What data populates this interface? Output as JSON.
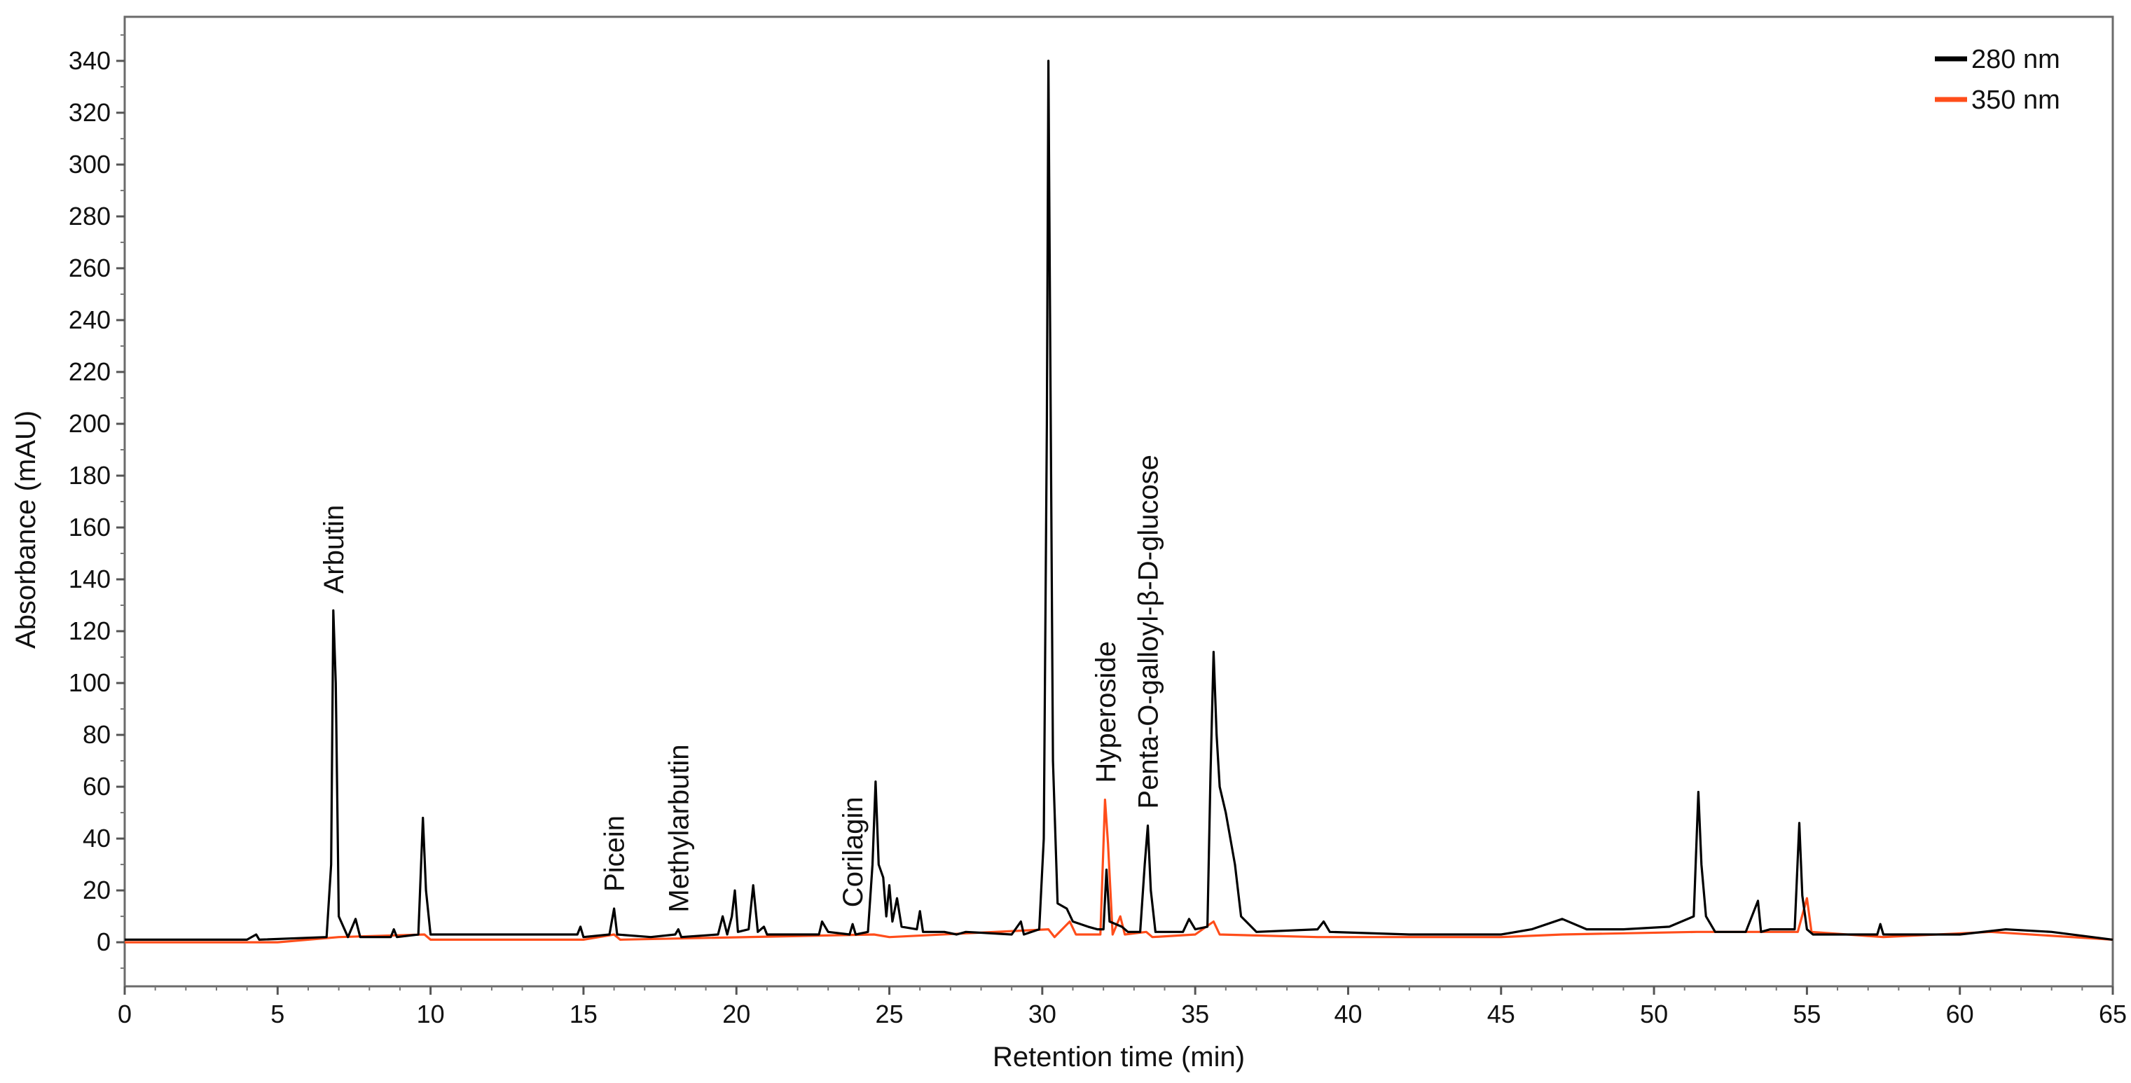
{
  "chart_data": {
    "type": "line",
    "title": "",
    "xlabel": "Retention time (min)",
    "ylabel": "Absorbance (mAU)",
    "xlim": [
      0,
      65
    ],
    "ylim": [
      -17,
      357
    ],
    "x_ticks": [
      0,
      5,
      10,
      15,
      20,
      25,
      30,
      35,
      40,
      45,
      50,
      55,
      60,
      65
    ],
    "y_ticks": [
      0,
      20,
      40,
      60,
      80,
      100,
      120,
      140,
      160,
      180,
      200,
      220,
      240,
      260,
      280,
      300,
      320,
      340
    ],
    "grid": false,
    "legend_position": "top-right",
    "series": [
      {
        "name": "280 nm",
        "color": "#000000",
        "points": [
          [
            0,
            1
          ],
          [
            4,
            1
          ],
          [
            4.3,
            3
          ],
          [
            4.4,
            1
          ],
          [
            6.6,
            2
          ],
          [
            6.75,
            30
          ],
          [
            6.82,
            128
          ],
          [
            6.9,
            100
          ],
          [
            7.0,
            10
          ],
          [
            7.3,
            2
          ],
          [
            7.55,
            9
          ],
          [
            7.7,
            2
          ],
          [
            8.7,
            2
          ],
          [
            8.8,
            5
          ],
          [
            8.9,
            2
          ],
          [
            9.6,
            3
          ],
          [
            9.75,
            48
          ],
          [
            9.85,
            20
          ],
          [
            10.0,
            3
          ],
          [
            14.8,
            3
          ],
          [
            14.9,
            6
          ],
          [
            15.0,
            2
          ],
          [
            15.85,
            3
          ],
          [
            16.0,
            13
          ],
          [
            16.1,
            3
          ],
          [
            17.2,
            2
          ],
          [
            18.0,
            3
          ],
          [
            18.1,
            5
          ],
          [
            18.2,
            2
          ],
          [
            19.4,
            3
          ],
          [
            19.55,
            10
          ],
          [
            19.7,
            3
          ],
          [
            19.85,
            10
          ],
          [
            19.95,
            20
          ],
          [
            20.05,
            4
          ],
          [
            20.4,
            5
          ],
          [
            20.55,
            22
          ],
          [
            20.7,
            4
          ],
          [
            20.9,
            6
          ],
          [
            21.0,
            3
          ],
          [
            22.7,
            3
          ],
          [
            22.8,
            8
          ],
          [
            23.0,
            4
          ],
          [
            23.7,
            3
          ],
          [
            23.8,
            7
          ],
          [
            23.9,
            3
          ],
          [
            24.3,
            4
          ],
          [
            24.45,
            30
          ],
          [
            24.55,
            62
          ],
          [
            24.65,
            30
          ],
          [
            24.8,
            25
          ],
          [
            24.9,
            10
          ],
          [
            25.0,
            22
          ],
          [
            25.1,
            8
          ],
          [
            25.25,
            17
          ],
          [
            25.4,
            6
          ],
          [
            25.9,
            5
          ],
          [
            26.0,
            12
          ],
          [
            26.1,
            4
          ],
          [
            26.8,
            4
          ],
          [
            27.2,
            3
          ],
          [
            27.5,
            4
          ],
          [
            29.0,
            3
          ],
          [
            29.3,
            8
          ],
          [
            29.4,
            3
          ],
          [
            29.9,
            5
          ],
          [
            30.05,
            40
          ],
          [
            30.15,
            200
          ],
          [
            30.2,
            340
          ],
          [
            30.25,
            248
          ],
          [
            30.35,
            70
          ],
          [
            30.5,
            15
          ],
          [
            30.8,
            13
          ],
          [
            31.0,
            8
          ],
          [
            31.5,
            6
          ],
          [
            31.8,
            5
          ],
          [
            32.0,
            5
          ],
          [
            32.1,
            28
          ],
          [
            32.2,
            8
          ],
          [
            32.6,
            6
          ],
          [
            32.8,
            4
          ],
          [
            33.2,
            4
          ],
          [
            33.35,
            30
          ],
          [
            33.45,
            45
          ],
          [
            33.55,
            20
          ],
          [
            33.7,
            4
          ],
          [
            34.6,
            4
          ],
          [
            34.8,
            9
          ],
          [
            35.0,
            5
          ],
          [
            35.4,
            6
          ],
          [
            35.5,
            65
          ],
          [
            35.6,
            112
          ],
          [
            35.7,
            80
          ],
          [
            35.8,
            60
          ],
          [
            36.0,
            50
          ],
          [
            36.3,
            30
          ],
          [
            36.5,
            10
          ],
          [
            37.0,
            4
          ],
          [
            39.0,
            5
          ],
          [
            39.2,
            8
          ],
          [
            39.4,
            4
          ],
          [
            42.0,
            3
          ],
          [
            45.0,
            3
          ],
          [
            46.0,
            5
          ],
          [
            47.0,
            9
          ],
          [
            47.8,
            5
          ],
          [
            49.0,
            5
          ],
          [
            50.5,
            6
          ],
          [
            51.3,
            10
          ],
          [
            51.45,
            58
          ],
          [
            51.55,
            30
          ],
          [
            51.7,
            10
          ],
          [
            52.0,
            4
          ],
          [
            53.0,
            4
          ],
          [
            53.4,
            16
          ],
          [
            53.5,
            4
          ],
          [
            53.8,
            5
          ],
          [
            54.6,
            5
          ],
          [
            54.75,
            46
          ],
          [
            54.85,
            18
          ],
          [
            55.0,
            5
          ],
          [
            55.2,
            3
          ],
          [
            57.3,
            3
          ],
          [
            57.4,
            7
          ],
          [
            57.5,
            3
          ],
          [
            60.0,
            3
          ],
          [
            61.5,
            5
          ],
          [
            63.0,
            4
          ],
          [
            65.0,
            1
          ]
        ]
      },
      {
        "name": "350 nm",
        "color": "#ff4d1a",
        "points": [
          [
            0,
            0
          ],
          [
            5,
            0
          ],
          [
            7.0,
            2
          ],
          [
            9.8,
            3
          ],
          [
            10.0,
            1
          ],
          [
            15.0,
            1
          ],
          [
            16.0,
            3
          ],
          [
            16.2,
            1
          ],
          [
            24.5,
            3
          ],
          [
            25.0,
            2
          ],
          [
            30.2,
            5
          ],
          [
            30.4,
            2
          ],
          [
            30.9,
            8
          ],
          [
            31.1,
            3
          ],
          [
            31.9,
            3
          ],
          [
            32.05,
            55
          ],
          [
            32.15,
            38
          ],
          [
            32.3,
            3
          ],
          [
            32.55,
            10
          ],
          [
            32.7,
            3
          ],
          [
            33.4,
            4
          ],
          [
            33.6,
            2
          ],
          [
            35.0,
            3
          ],
          [
            35.6,
            8
          ],
          [
            35.8,
            3
          ],
          [
            39.0,
            2
          ],
          [
            45.0,
            2
          ],
          [
            47.0,
            3
          ],
          [
            51.4,
            4
          ],
          [
            54.7,
            4
          ],
          [
            55.0,
            17
          ],
          [
            55.15,
            4
          ],
          [
            57.5,
            2
          ],
          [
            61.0,
            4
          ],
          [
            65.0,
            1
          ]
        ]
      }
    ],
    "annotations": [
      {
        "text": "Arbutin",
        "x": 6.82,
        "y": 128
      },
      {
        "text": "Picein",
        "x": 16.0,
        "y": 13
      },
      {
        "text": "Methylarbutin",
        "x": 18.1,
        "y": 5
      },
      {
        "text": "Corilagin",
        "x": 23.8,
        "y": 7
      },
      {
        "text": "Hyperoside",
        "x": 32.07,
        "y": 55
      },
      {
        "text": "Penta-O-galloyl-β-D-glucose",
        "x": 33.45,
        "y": 45
      }
    ]
  }
}
